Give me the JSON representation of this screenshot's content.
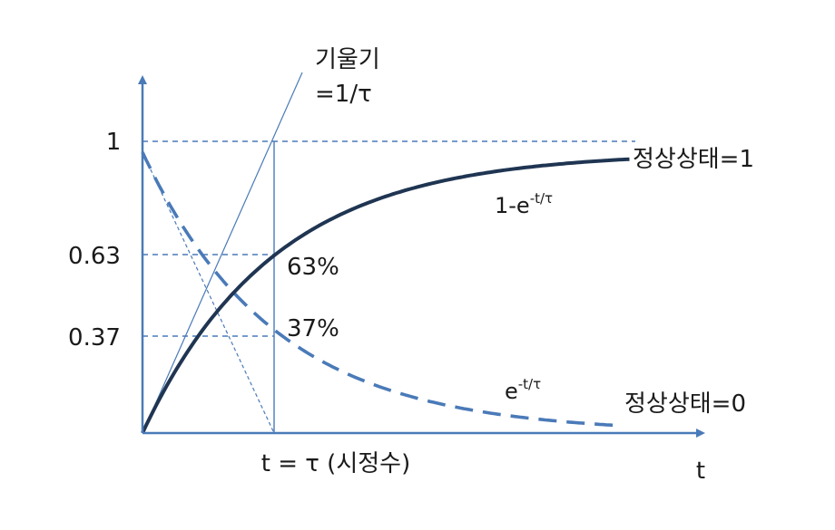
{
  "y_ticks": [
    "1",
    "0.63",
    "0.37"
  ],
  "x_label": "t",
  "tau_label": "t = τ (시정수)",
  "slope_label_line1": "기울기",
  "slope_label_line2": "=1/τ",
  "steady_one_label": "정상상태=1",
  "steady_zero_label": "정상상태=0",
  "rise_curve": {
    "base": "1-e",
    "exp": "-t/τ",
    "marker": "63%"
  },
  "decay_curve": {
    "base": "e",
    "exp": "-t/τ",
    "marker": "37%"
  },
  "colors": {
    "axis": "#4a7ab8",
    "rise": "#1f3552",
    "decay": "#4a7ab8",
    "text": "#1a1a1a"
  }
}
